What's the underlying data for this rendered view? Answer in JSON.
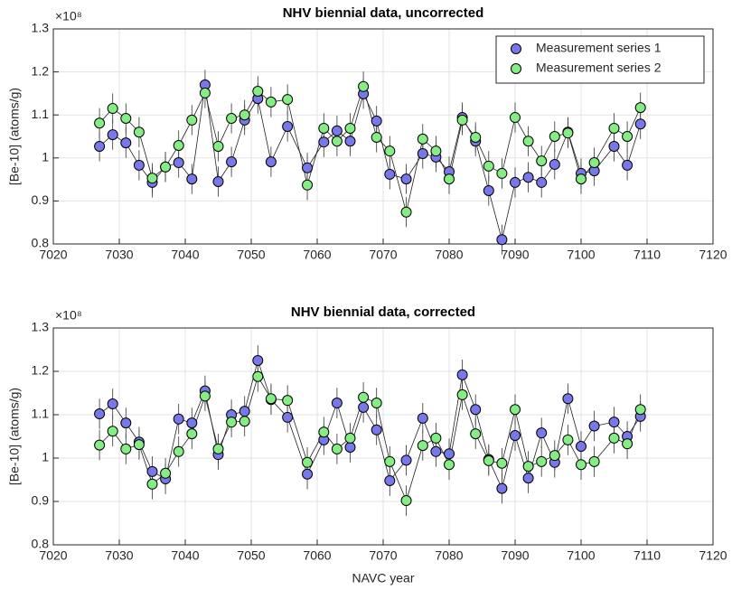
{
  "chart_data": [
    {
      "type": "line",
      "title": "NHV biennial data, uncorrected",
      "ylabel": "[Be-10] (atoms/g)",
      "y_exponent_label": "×10⁸",
      "x": [
        7027,
        7029,
        7031,
        7033,
        7035,
        7037,
        7039,
        7041,
        7043,
        7045,
        7047,
        7049,
        7051,
        7053,
        7055.5,
        7058.5,
        7061,
        7063,
        7065,
        7067,
        7069,
        7071,
        7073.5,
        7076,
        7078,
        7080,
        7082,
        7084,
        7086,
        7088,
        7090,
        7092,
        7094,
        7096,
        7098,
        7100,
        7102,
        7105,
        7107,
        7109
      ],
      "series": [
        {
          "name": "Measurement series 1",
          "color": "#7878ea",
          "error": 0.035,
          "values": [
            1.027,
            1.054,
            1.035,
            0.983,
            0.943,
            0.979,
            0.989,
            0.951,
            1.17,
            0.945,
            0.991,
            1.088,
            1.138,
            0.991,
            1.073,
            0.977,
            1.037,
            1.063,
            1.039,
            1.149,
            1.086,
            0.962,
            0.951,
            1.01,
            1.002,
            0.968,
            1.094,
            1.039,
            0.924,
            0.81,
            0.943,
            0.955,
            0.943,
            0.985,
            1.06,
            0.964,
            0.97,
            1.027,
            0.983,
            1.079
          ]
        },
        {
          "name": "Measurement series 2",
          "color": "#84ee84",
          "error": 0.035,
          "values": [
            1.081,
            1.115,
            1.092,
            1.06,
            0.953,
            0.979,
            1.029,
            1.088,
            1.151,
            1.027,
            1.092,
            1.1,
            1.155,
            1.13,
            1.136,
            0.937,
            1.069,
            1.039,
            1.069,
            1.166,
            1.048,
            1.016,
            0.874,
            1.044,
            1.016,
            0.951,
            1.088,
            1.048,
            0.981,
            0.964,
            1.094,
            1.039,
            0.993,
            1.05,
            1.058,
            0.951,
            0.989,
            1.069,
            1.05,
            1.117
          ]
        }
      ],
      "xlim": [
        7020,
        7120
      ],
      "xticks": [
        7020,
        7030,
        7040,
        7050,
        7060,
        7070,
        7080,
        7090,
        7100,
        7110,
        7120
      ],
      "ylim": [
        0.8,
        1.3
      ],
      "yticks": [
        0.8,
        0.9,
        1,
        1.1,
        1.2,
        1.3
      ],
      "grid": true,
      "legend_location": "northeast"
    },
    {
      "type": "line",
      "title": "NHV biennial data, corrected",
      "xlabel": "NAVC year",
      "ylabel": "[Be-10] (atoms/g)",
      "y_exponent_label": "×10⁸",
      "x": [
        7027,
        7029,
        7031,
        7033,
        7035,
        7037,
        7039,
        7041,
        7043,
        7045,
        7047,
        7049,
        7051,
        7053,
        7055.5,
        7058.5,
        7061,
        7063,
        7065,
        7067,
        7069,
        7071,
        7073.5,
        7076,
        7078,
        7080,
        7082,
        7084,
        7086,
        7088,
        7090,
        7092,
        7094,
        7096,
        7098,
        7100,
        7102,
        7105,
        7107,
        7109
      ],
      "series": [
        {
          "color": "#7878ea",
          "error": 0.035,
          "values": [
            1.102,
            1.125,
            1.081,
            1.037,
            0.969,
            0.952,
            1.09,
            1.081,
            1.155,
            1.008,
            1.1,
            1.108,
            1.225,
            1.135,
            1.094,
            0.963,
            1.042,
            1.127,
            1.025,
            1.117,
            1.065,
            0.948,
            0.995,
            1.092,
            1.015,
            1.01,
            1.192,
            1.112,
            0.997,
            0.93,
            1.052,
            0.954,
            1.058,
            0.99,
            1.137,
            1.027,
            1.074,
            1.083,
            1.05,
            1.096
          ]
        },
        {
          "color": "#84ee84",
          "error": 0.035,
          "values": [
            1.03,
            1.062,
            1.021,
            1.031,
            0.94,
            0.965,
            1.015,
            1.056,
            1.143,
            1.021,
            1.083,
            1.085,
            1.188,
            1.137,
            1.133,
            0.99,
            1.06,
            1.021,
            1.046,
            1.14,
            1.127,
            0.992,
            0.902,
            1.029,
            1.046,
            0.985,
            1.146,
            1.056,
            0.994,
            0.988,
            1.112,
            0.981,
            0.992,
            1.006,
            1.042,
            0.985,
            0.992,
            1.046,
            1.033,
            1.112
          ]
        }
      ],
      "xlim": [
        7020,
        7120
      ],
      "xticks": [
        7020,
        7030,
        7040,
        7050,
        7060,
        7070,
        7080,
        7090,
        7100,
        7110,
        7120
      ],
      "ylim": [
        0.8,
        1.3
      ],
      "yticks": [
        0.8,
        0.9,
        1,
        1.1,
        1.2,
        1.3
      ],
      "grid": true
    }
  ]
}
